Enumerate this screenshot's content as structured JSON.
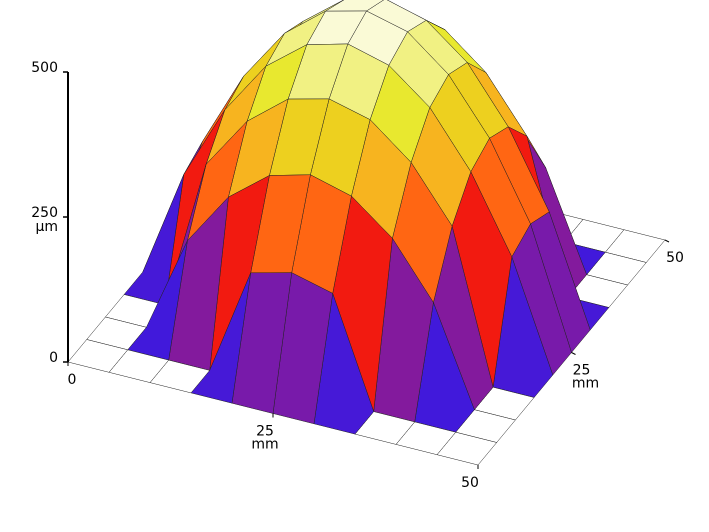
{
  "chart_data": {
    "type": "surface",
    "x": [
      0,
      5,
      10,
      15,
      20,
      25,
      30,
      35,
      40,
      45,
      50
    ],
    "y": [
      0,
      5,
      10,
      15,
      20,
      25,
      30,
      35,
      40,
      45,
      50
    ],
    "z": [
      [
        0,
        0,
        0,
        0,
        0,
        0,
        0,
        0,
        0,
        0,
        0
      ],
      [
        0,
        0,
        0,
        0,
        186,
        204,
        186,
        0,
        0,
        0,
        0
      ],
      [
        0,
        0,
        167,
        260,
        315,
        334,
        315,
        260,
        167,
        0,
        0
      ],
      [
        0,
        0,
        260,
        352,
        408,
        426,
        408,
        352,
        260,
        0,
        0
      ],
      [
        0,
        186,
        315,
        408,
        463,
        482,
        463,
        408,
        315,
        186,
        0
      ],
      [
        0,
        204,
        334,
        426,
        482,
        500,
        482,
        426,
        334,
        204,
        0
      ],
      [
        0,
        186,
        315,
        408,
        463,
        482,
        463,
        408,
        315,
        186,
        0
      ],
      [
        0,
        0,
        260,
        352,
        408,
        426,
        408,
        352,
        260,
        0,
        0
      ],
      [
        0,
        0,
        167,
        260,
        315,
        334,
        315,
        260,
        167,
        0,
        0
      ],
      [
        0,
        0,
        0,
        0,
        186,
        204,
        186,
        0,
        0,
        0,
        0
      ],
      [
        0,
        0,
        0,
        0,
        0,
        0,
        0,
        0,
        0,
        0,
        0
      ]
    ],
    "xlim": [
      0,
      50
    ],
    "ylim": [
      0,
      50
    ],
    "zlim": [
      0,
      500
    ],
    "xticks": [
      0,
      25,
      50
    ],
    "yticks": [
      25,
      50
    ],
    "zticks": [
      0,
      250,
      500
    ],
    "xlabel": "mm",
    "ylabel": "mm",
    "zlabel": "µm",
    "colormap": [
      "#1818ff",
      "#7a1aa8",
      "#ff1a00",
      "#ff9a20",
      "#e6e61e",
      "#ffffff"
    ]
  }
}
